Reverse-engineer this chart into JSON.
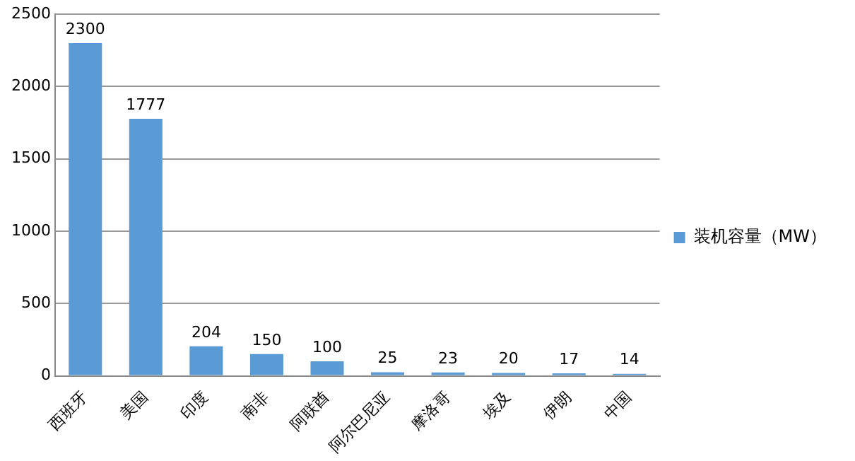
{
  "chart_data": {
    "type": "bar",
    "categories": [
      "西班牙",
      "美国",
      "印度",
      "南非",
      "阿联酋",
      "阿尔巴尼亚",
      "摩洛哥",
      "埃及",
      "伊朗",
      "中国"
    ],
    "series": [
      {
        "name": "装机容量（MW）",
        "color": "#5b9bd5",
        "values": [
          2300,
          1777,
          204,
          150,
          100,
          25,
          23,
          20,
          17,
          14
        ]
      }
    ],
    "ylim": [
      0,
      2500
    ],
    "yticks": [
      0,
      500,
      1000,
      1500,
      2000,
      2500
    ],
    "grid": "y",
    "legend": "right",
    "data_labels": true
  }
}
